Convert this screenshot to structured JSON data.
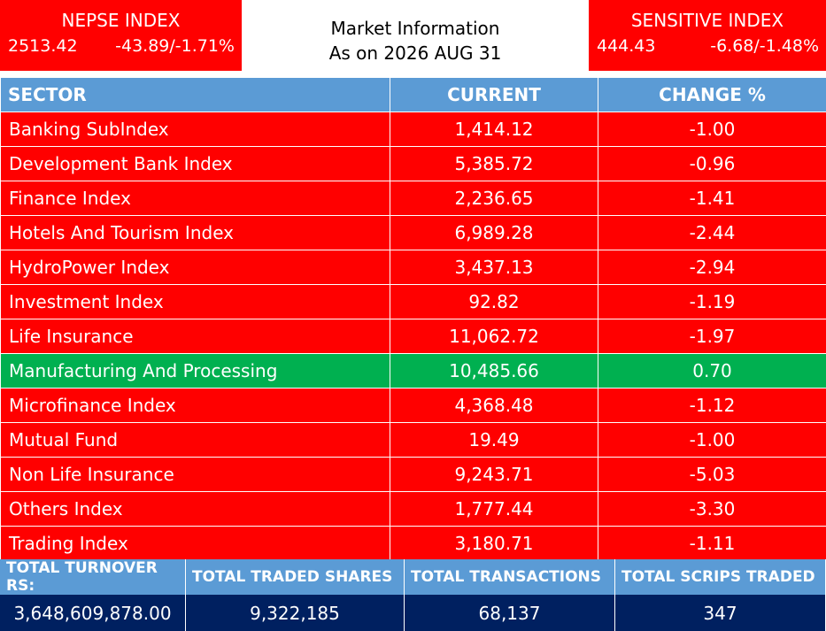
{
  "nepse": {
    "title": "NEPSE INDEX",
    "value": "2513.42",
    "change": "-43.89/-1.71%"
  },
  "sensitive": {
    "title": "SENSITIVE INDEX",
    "value": "444.43",
    "change": "-6.68/-1.48%"
  },
  "info": {
    "line1": "Market Information",
    "line2": "As on 2026 AUG 31"
  },
  "table": {
    "headers": [
      "SECTOR",
      "CURRENT",
      "CHANGE %"
    ],
    "rows": [
      {
        "sector": "Banking SubIndex",
        "current": "1,414.12",
        "change": "-1.00"
      },
      {
        "sector": "Development Bank Index",
        "current": "5,385.72",
        "change": "-0.96"
      },
      {
        "sector": "Finance Index",
        "current": "2,236.65",
        "change": "-1.41"
      },
      {
        "sector": "Hotels And Tourism Index",
        "current": "6,989.28",
        "change": "-2.44"
      },
      {
        "sector": "HydroPower Index",
        "current": "3,437.13",
        "change": "-2.94"
      },
      {
        "sector": "Investment Index",
        "current": "92.82",
        "change": "-1.19"
      },
      {
        "sector": "Life Insurance",
        "current": "11,062.72",
        "change": "-1.97"
      },
      {
        "sector": "Manufacturing And Processing",
        "current": "10,485.66",
        "change": "0.70"
      },
      {
        "sector": "Microfinance Index",
        "current": "4,368.48",
        "change": "-1.12"
      },
      {
        "sector": "Mutual Fund",
        "current": "19.49",
        "change": "-1.00"
      },
      {
        "sector": "Non Life Insurance",
        "current": "9,243.71",
        "change": "-5.03"
      },
      {
        "sector": "Others Index",
        "current": "1,777.44",
        "change": "-3.30"
      },
      {
        "sector": "Trading Index",
        "current": "3,180.71",
        "change": "-1.11"
      }
    ]
  },
  "totals": {
    "labels": [
      "TOTAL TURNOVER RS:",
      "TOTAL TRADED SHARES",
      "TOTAL TRANSACTIONS",
      "TOTAL SCRIPS TRADED"
    ],
    "values": [
      "3,648,609,878.00",
      "9,322,185",
      "68,137",
      "347"
    ]
  },
  "colors": {
    "negative": "#ff0000",
    "positive": "#00b050",
    "header": "#5b9bd5",
    "totals": "#002060"
  }
}
